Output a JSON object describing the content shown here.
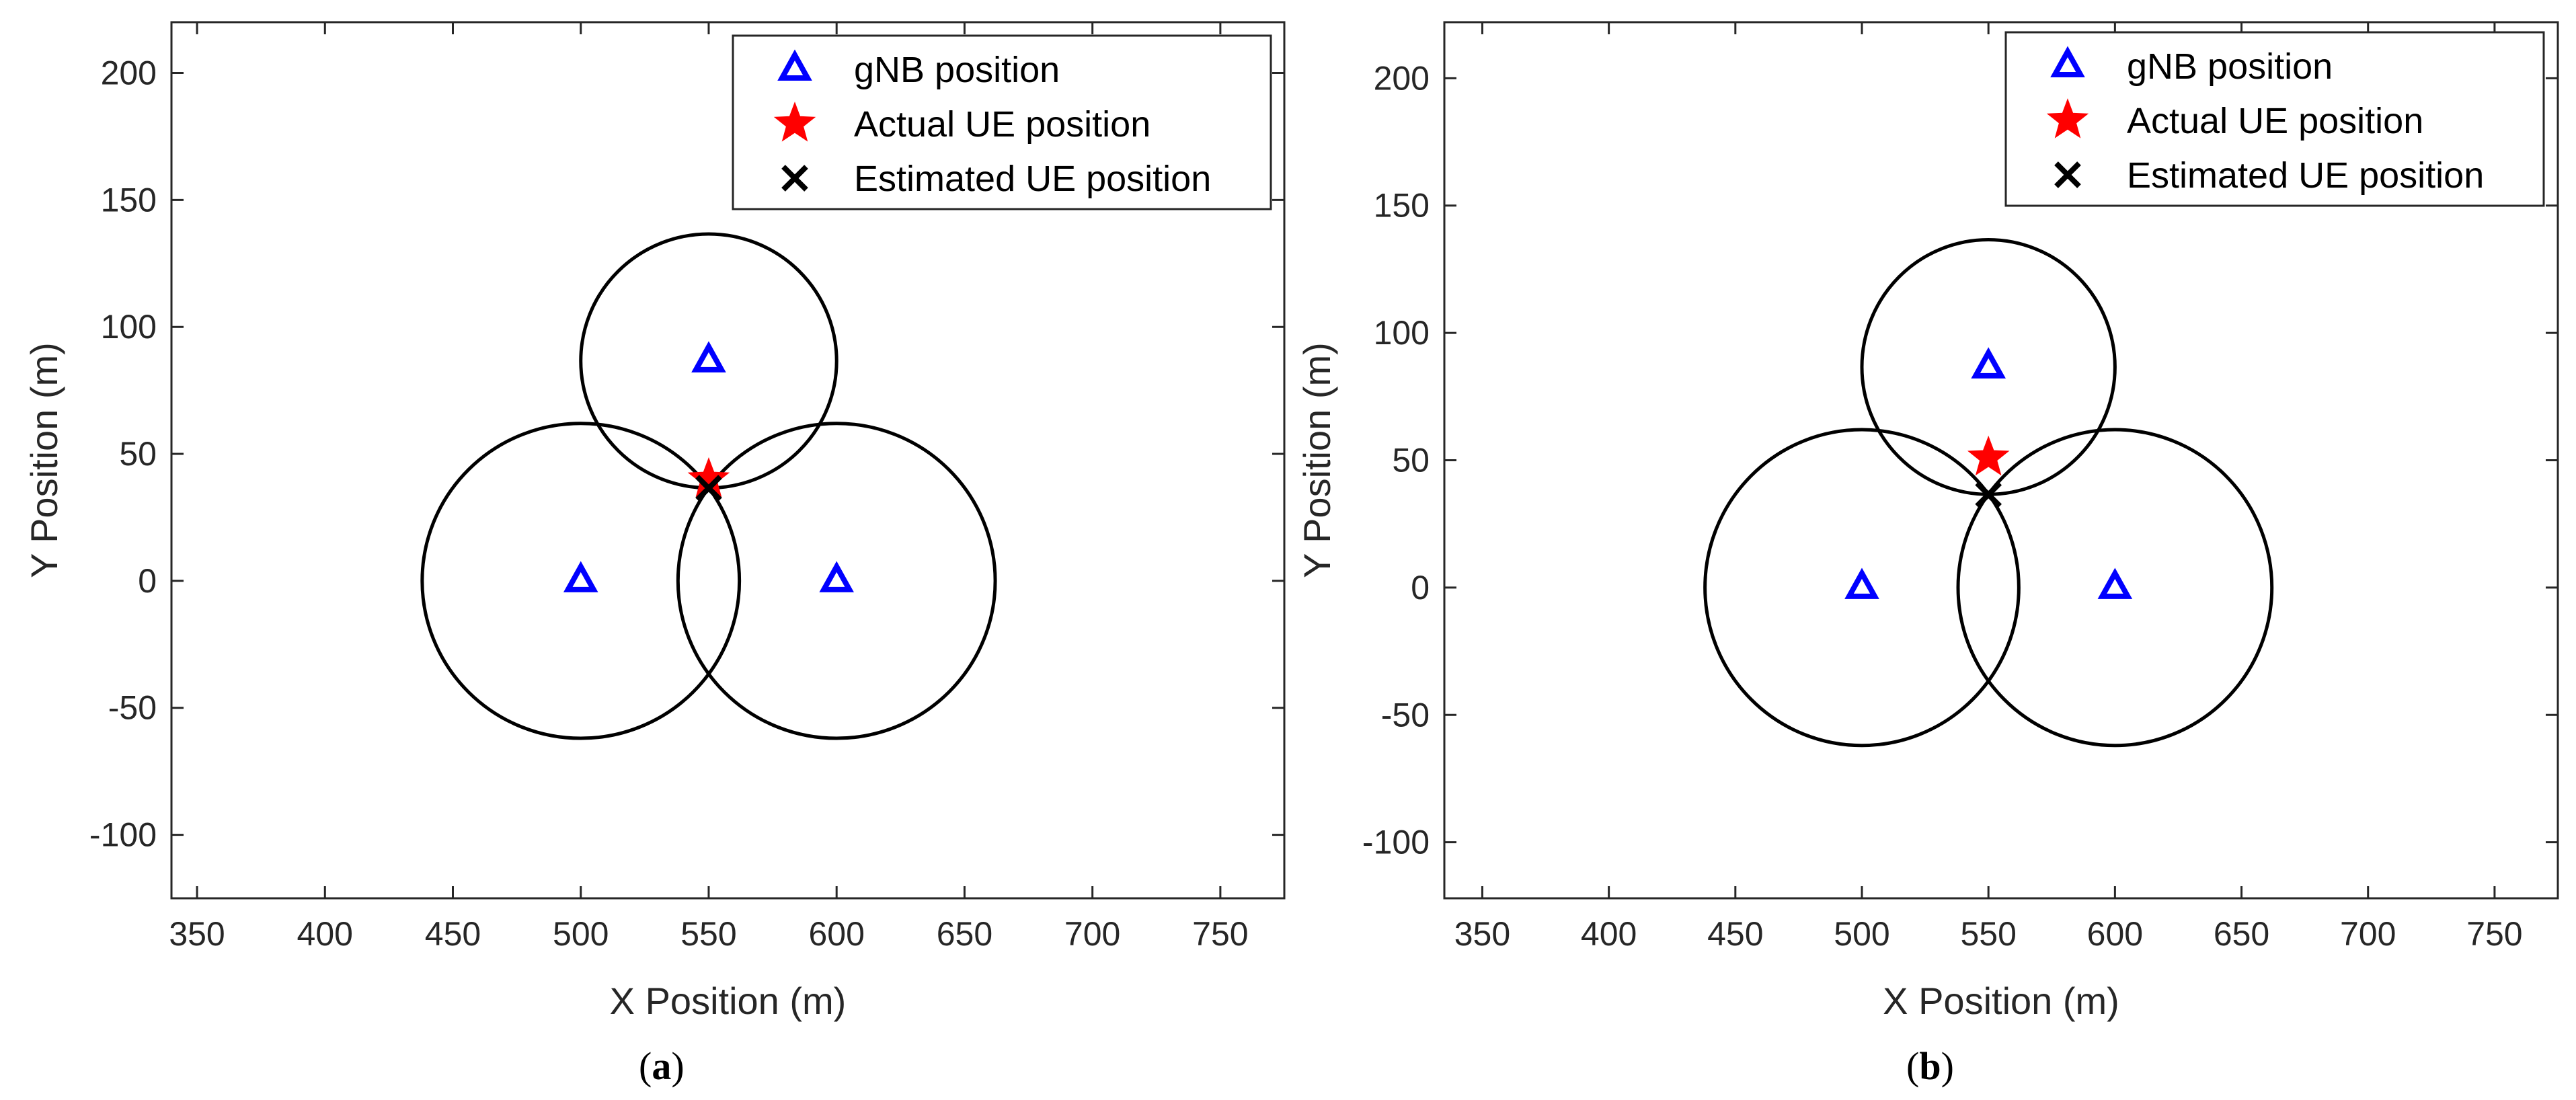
{
  "figure": {
    "colors": {
      "gnb": "#0000ff",
      "actual_ue": "#ff0000",
      "estimated_ue": "#000000",
      "circle": "#000000",
      "axis": "#262626"
    },
    "legend_icons": [
      "triangle-icon",
      "star-icon",
      "cross-icon"
    ]
  },
  "chart_data": [
    {
      "type": "scatter",
      "panel_caption": {
        "open": "(",
        "letter": "a",
        "close": ")"
      },
      "xlabel": "X Position (m)",
      "ylabel": "Y Position (m)",
      "xlim": [
        340,
        775
      ],
      "ylim": [
        -125,
        220
      ],
      "xticks": [
        350,
        400,
        450,
        500,
        550,
        600,
        650,
        700,
        750
      ],
      "yticks": [
        -100,
        -50,
        0,
        50,
        100,
        150,
        200
      ],
      "legend": {
        "position": "top-right",
        "entries": [
          "gNB position",
          "Actual UE position",
          "Estimated UE position"
        ]
      },
      "gnb_positions": [
        {
          "x": 550,
          "y": 86.6
        },
        {
          "x": 500,
          "y": 0
        },
        {
          "x": 600,
          "y": 0
        }
      ],
      "actual_ue": {
        "x": 550,
        "y": 40
      },
      "estimated_ue": {
        "x": 550,
        "y": 36.5
      },
      "circles": [
        {
          "cx": 550,
          "cy": 86.6,
          "r": 50
        },
        {
          "cx": 500,
          "cy": 0,
          "r": 62
        },
        {
          "cx": 600,
          "cy": 0,
          "r": 62
        }
      ]
    },
    {
      "type": "scatter",
      "panel_caption": {
        "open": "(",
        "letter": "b",
        "close": ")"
      },
      "xlabel": "X Position (m)",
      "ylabel": "Y Position (m)",
      "xlim": [
        335,
        775
      ],
      "ylim": [
        -122,
        222
      ],
      "xticks": [
        350,
        400,
        450,
        500,
        550,
        600,
        650,
        700,
        750
      ],
      "yticks": [
        -100,
        -50,
        0,
        50,
        100,
        150,
        200
      ],
      "legend": {
        "position": "top-right",
        "entries": [
          "gNB position",
          "Actual UE position",
          "Estimated UE position"
        ]
      },
      "gnb_positions": [
        {
          "x": 550,
          "y": 86.6
        },
        {
          "x": 500,
          "y": 0
        },
        {
          "x": 600,
          "y": 0
        }
      ],
      "actual_ue": {
        "x": 550,
        "y": 51
      },
      "estimated_ue": {
        "x": 550,
        "y": 36.5
      },
      "circles": [
        {
          "cx": 550,
          "cy": 86.6,
          "r": 50
        },
        {
          "cx": 500,
          "cy": 0,
          "r": 62
        },
        {
          "cx": 600,
          "cy": 0,
          "r": 62
        }
      ]
    }
  ]
}
